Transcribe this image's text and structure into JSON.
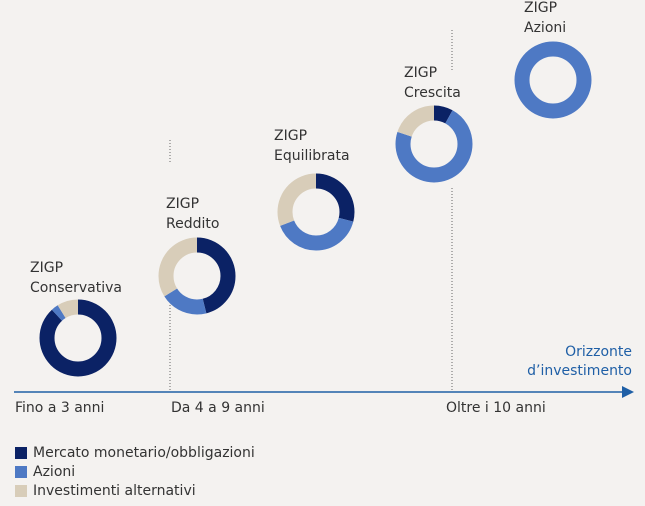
{
  "chart_data": {
    "type": "donut",
    "category_prefix": "ZIGP",
    "categories": [
      "Conservativa",
      "Reddito",
      "Equilibrata",
      "Crescita",
      "Azioni"
    ],
    "series": [
      {
        "name": "Mercato monetario/obbligazioni",
        "color": "#0b2265",
        "values": [
          88,
          46,
          29,
          8,
          0
        ]
      },
      {
        "name": "Azioni",
        "color": "#4e79c4",
        "values": [
          3,
          20,
          40,
          72,
          100
        ]
      },
      {
        "name": "Investimenti alternativi",
        "color": "#d8cdb9",
        "values": [
          9,
          34,
          31,
          20,
          0
        ]
      }
    ],
    "axis_label": [
      "Orizzonte",
      "d’investimento"
    ],
    "horizon_labels": [
      "Fino a 3 anni",
      "Da 4 a 9 anni",
      "Oltre i 10 anni"
    ],
    "axis_color": "#1f5fa6"
  }
}
